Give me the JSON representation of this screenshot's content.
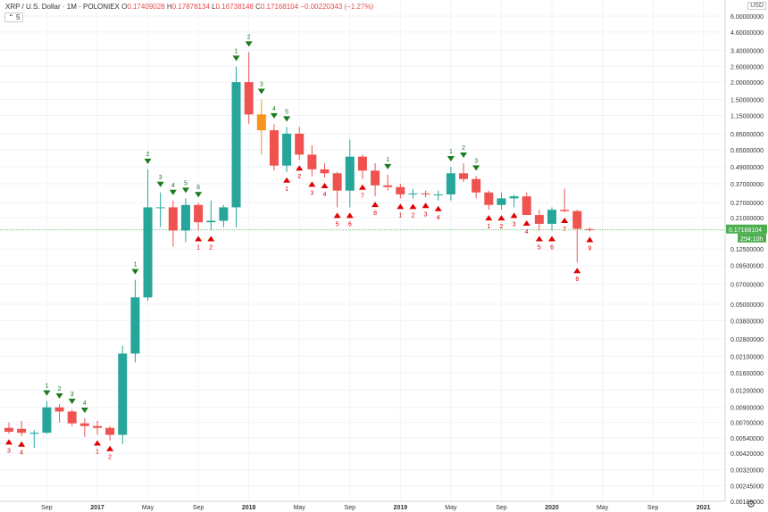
{
  "header": {
    "symbol": "XRP / U.S. Dollar · 1M · POLONIEX",
    "o_label": "O",
    "o_value": "0.17409028",
    "h_label": "H",
    "h_value": "0.17878134",
    "l_label": "L",
    "l_value": "0.16738148",
    "c_label": "C",
    "c_value": "0.17168104",
    "change": "−0.00220343 (−1.27%)",
    "indicator_toggle": "5",
    "unit": "USD"
  },
  "price_axis": {
    "labels": [
      "6.00000000",
      "4.60000000",
      "3.40000000",
      "2.60000000",
      "2.00000000",
      "1.50000000",
      "1.15000000",
      "0.85000000",
      "0.65000000",
      "0.49000000",
      "0.37000000",
      "0.27000000",
      "0.21000000",
      "0.12500000",
      "0.09500000",
      "0.07000000",
      "0.05000000",
      "0.03800000",
      "0.02800000",
      "0.02100000",
      "0.01600000",
      "0.01200000",
      "0.00900000",
      "0.00700000",
      "0.00540000",
      "0.00420000",
      "0.00320000",
      "0.00245000",
      "0.00189000"
    ],
    "last_price": "0.17168104",
    "countdown": "294:10h"
  },
  "time_axis": {
    "labels": [
      "Sep",
      "2017",
      "May",
      "Sep",
      "2018",
      "May",
      "Sep",
      "2019",
      "May",
      "Sep",
      "2020",
      "May",
      "Sep",
      "2021"
    ]
  },
  "chart_data": {
    "type": "candlestick",
    "title": "XRP / U.S. Dollar · 1M · POLONIEX",
    "y_scale": "log",
    "ylim": [
      0.00189,
      6.0
    ],
    "up_color": "#26a69a",
    "down_color": "#ef5350",
    "highlight_color": "#f7931a",
    "last_price_line_color": "#4caf50",
    "candles": [
      {
        "date": "2016-06",
        "o": 0.0064,
        "h": 0.007,
        "l": 0.0058,
        "c": 0.006
      },
      {
        "date": "2016-07",
        "o": 0.0063,
        "h": 0.0072,
        "l": 0.0056,
        "c": 0.0059
      },
      {
        "date": "2016-08",
        "o": 0.0058,
        "h": 0.0062,
        "l": 0.0046,
        "c": 0.0059
      },
      {
        "date": "2016-09",
        "o": 0.0059,
        "h": 0.01,
        "l": 0.0058,
        "c": 0.009
      },
      {
        "date": "2016-10",
        "o": 0.009,
        "h": 0.0095,
        "l": 0.007,
        "c": 0.0084
      },
      {
        "date": "2016-11",
        "o": 0.0084,
        "h": 0.0087,
        "l": 0.0066,
        "c": 0.0069
      },
      {
        "date": "2016-12",
        "o": 0.0069,
        "h": 0.0075,
        "l": 0.0055,
        "c": 0.0066
      },
      {
        "date": "2017-01",
        "o": 0.0066,
        "h": 0.0072,
        "l": 0.0057,
        "c": 0.0064
      },
      {
        "date": "2017-02",
        "o": 0.0064,
        "h": 0.0066,
        "l": 0.0052,
        "c": 0.0057
      },
      {
        "date": "2017-03",
        "o": 0.0057,
        "h": 0.025,
        "l": 0.0049,
        "c": 0.022
      },
      {
        "date": "2017-04",
        "o": 0.022,
        "h": 0.075,
        "l": 0.019,
        "c": 0.056
      },
      {
        "date": "2017-05",
        "o": 0.056,
        "h": 0.47,
        "l": 0.053,
        "c": 0.25
      },
      {
        "date": "2017-06",
        "o": 0.25,
        "h": 0.32,
        "l": 0.18,
        "c": 0.25
      },
      {
        "date": "2017-07",
        "o": 0.25,
        "h": 0.28,
        "l": 0.13,
        "c": 0.17
      },
      {
        "date": "2017-08",
        "o": 0.17,
        "h": 0.29,
        "l": 0.14,
        "c": 0.26
      },
      {
        "date": "2017-09",
        "o": 0.26,
        "h": 0.27,
        "l": 0.17,
        "c": 0.195
      },
      {
        "date": "2017-10",
        "o": 0.195,
        "h": 0.28,
        "l": 0.17,
        "c": 0.2
      },
      {
        "date": "2017-11",
        "o": 0.2,
        "h": 0.26,
        "l": 0.18,
        "c": 0.25
      },
      {
        "date": "2017-12",
        "o": 0.25,
        "h": 2.6,
        "l": 0.18,
        "c": 2.0
      },
      {
        "date": "2018-01",
        "o": 2.0,
        "h": 3.3,
        "l": 1.0,
        "c": 1.17
      },
      {
        "date": "2018-02",
        "o": 1.17,
        "h": 1.5,
        "l": 0.6,
        "c": 0.9
      },
      {
        "date": "2018-03",
        "o": 0.9,
        "h": 1.0,
        "l": 0.46,
        "c": 0.5
      },
      {
        "date": "2018-04",
        "o": 0.5,
        "h": 0.95,
        "l": 0.45,
        "c": 0.85
      },
      {
        "date": "2018-05",
        "o": 0.85,
        "h": 0.95,
        "l": 0.55,
        "c": 0.6
      },
      {
        "date": "2018-06",
        "o": 0.6,
        "h": 0.7,
        "l": 0.42,
        "c": 0.47
      },
      {
        "date": "2018-07",
        "o": 0.47,
        "h": 0.52,
        "l": 0.41,
        "c": 0.44
      },
      {
        "date": "2018-08",
        "o": 0.44,
        "h": 0.45,
        "l": 0.25,
        "c": 0.33
      },
      {
        "date": "2018-09",
        "o": 0.33,
        "h": 0.77,
        "l": 0.25,
        "c": 0.58
      },
      {
        "date": "2018-10",
        "o": 0.58,
        "h": 0.6,
        "l": 0.4,
        "c": 0.46
      },
      {
        "date": "2018-11",
        "o": 0.46,
        "h": 0.52,
        "l": 0.3,
        "c": 0.36
      },
      {
        "date": "2018-12",
        "o": 0.36,
        "h": 0.43,
        "l": 0.33,
        "c": 0.35
      },
      {
        "date": "2019-01",
        "o": 0.35,
        "h": 0.37,
        "l": 0.29,
        "c": 0.31
      },
      {
        "date": "2019-02",
        "o": 0.31,
        "h": 0.34,
        "l": 0.29,
        "c": 0.315
      },
      {
        "date": "2019-03",
        "o": 0.315,
        "h": 0.33,
        "l": 0.295,
        "c": 0.31
      },
      {
        "date": "2019-04",
        "o": 0.31,
        "h": 0.33,
        "l": 0.28,
        "c": 0.31
      },
      {
        "date": "2019-05",
        "o": 0.31,
        "h": 0.49,
        "l": 0.28,
        "c": 0.44
      },
      {
        "date": "2019-06",
        "o": 0.44,
        "h": 0.52,
        "l": 0.38,
        "c": 0.4
      },
      {
        "date": "2019-07",
        "o": 0.4,
        "h": 0.42,
        "l": 0.29,
        "c": 0.32
      },
      {
        "date": "2019-08",
        "o": 0.32,
        "h": 0.33,
        "l": 0.24,
        "c": 0.26
      },
      {
        "date": "2019-09",
        "o": 0.26,
        "h": 0.32,
        "l": 0.24,
        "c": 0.29
      },
      {
        "date": "2019-10",
        "o": 0.29,
        "h": 0.31,
        "l": 0.25,
        "c": 0.3
      },
      {
        "date": "2019-11",
        "o": 0.3,
        "h": 0.32,
        "l": 0.22,
        "c": 0.22
      },
      {
        "date": "2019-12",
        "o": 0.22,
        "h": 0.24,
        "l": 0.17,
        "c": 0.19
      },
      {
        "date": "2020-01",
        "o": 0.19,
        "h": 0.25,
        "l": 0.17,
        "c": 0.24
      },
      {
        "date": "2020-02",
        "o": 0.24,
        "h": 0.34,
        "l": 0.23,
        "c": 0.235
      },
      {
        "date": "2020-03",
        "o": 0.235,
        "h": 0.24,
        "l": 0.1,
        "c": 0.175
      },
      {
        "date": "2020-04",
        "o": 0.1741,
        "h": 0.1788,
        "l": 0.1674,
        "c": 0.1717
      }
    ],
    "highlight_index": 20,
    "sell_setup_markers": [
      {
        "i": 3,
        "n": "1"
      },
      {
        "i": 4,
        "n": "2"
      },
      {
        "i": 5,
        "n": "3"
      },
      {
        "i": 6,
        "n": "4"
      },
      {
        "i": 10,
        "n": "1"
      },
      {
        "i": 11,
        "n": "2"
      },
      {
        "i": 12,
        "n": "3"
      },
      {
        "i": 13,
        "n": "4"
      },
      {
        "i": 14,
        "n": "5"
      },
      {
        "i": 15,
        "n": "6"
      },
      {
        "i": 18,
        "n": "1"
      },
      {
        "i": 19,
        "n": "2"
      },
      {
        "i": 20,
        "n": "3"
      },
      {
        "i": 21,
        "n": "4"
      },
      {
        "i": 22,
        "n": "5"
      },
      {
        "i": 30,
        "n": "1"
      },
      {
        "i": 35,
        "n": "1"
      },
      {
        "i": 36,
        "n": "2"
      },
      {
        "i": 37,
        "n": "3"
      }
    ],
    "buy_setup_markers": [
      {
        "i": 0,
        "n": "3"
      },
      {
        "i": 1,
        "n": "4"
      },
      {
        "i": 7,
        "n": "1"
      },
      {
        "i": 8,
        "n": "2"
      },
      {
        "i": 15,
        "n": "1"
      },
      {
        "i": 16,
        "n": "2"
      },
      {
        "i": 22,
        "n": "1"
      },
      {
        "i": 23,
        "n": "2"
      },
      {
        "i": 24,
        "n": "3"
      },
      {
        "i": 25,
        "n": "4"
      },
      {
        "i": 26,
        "n": "5"
      },
      {
        "i": 27,
        "n": "6"
      },
      {
        "i": 28,
        "n": "7"
      },
      {
        "i": 29,
        "n": "8"
      },
      {
        "i": 31,
        "n": "1"
      },
      {
        "i": 32,
        "n": "2"
      },
      {
        "i": 33,
        "n": "3"
      },
      {
        "i": 34,
        "n": "4"
      },
      {
        "i": 38,
        "n": "1"
      },
      {
        "i": 39,
        "n": "2"
      },
      {
        "i": 40,
        "n": "3"
      },
      {
        "i": 41,
        "n": "4"
      },
      {
        "i": 42,
        "n": "5"
      },
      {
        "i": 43,
        "n": "6"
      },
      {
        "i": 44,
        "n": "7"
      },
      {
        "i": 45,
        "n": "8"
      },
      {
        "i": 46,
        "n": "9"
      }
    ]
  }
}
